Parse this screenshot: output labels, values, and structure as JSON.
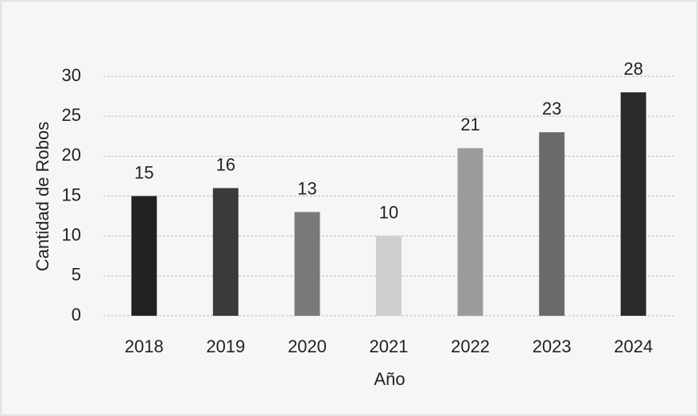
{
  "chart_data": {
    "type": "bar",
    "x_label": "Año",
    "y_label": "Cantidad de Robos",
    "categories": [
      "2018",
      "2019",
      "2020",
      "2021",
      "2022",
      "2023",
      "2024"
    ],
    "values": [
      15,
      16,
      13,
      10,
      21,
      23,
      28
    ],
    "colors": [
      "#222222",
      "#3a3a3a",
      "#7a7a7a",
      "#cfcfcf",
      "#9c9c9c",
      "#6a6a6a",
      "#2a2a2a"
    ],
    "ylim": [
      0,
      30
    ],
    "yticks": [
      0,
      5,
      10,
      15,
      20,
      25,
      30
    ],
    "grid": true
  }
}
